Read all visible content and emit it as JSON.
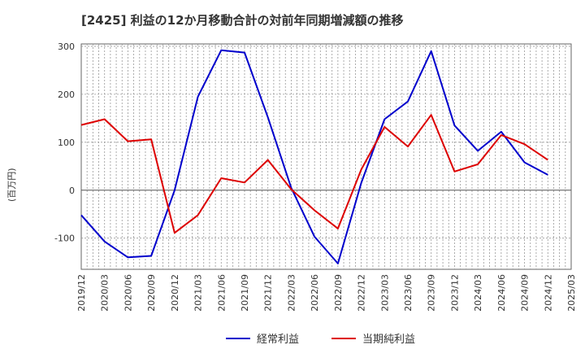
{
  "chart_data": {
    "type": "line",
    "title": "[2425]  利益の12か月移動合計の対前年同期増減額の推移",
    "ylabel": "(百万円)",
    "xlabel": "",
    "ylim": [
      -165,
      305
    ],
    "yticks": [
      300,
      200,
      100,
      0,
      -100
    ],
    "categories": [
      "2019/12",
      "2020/03",
      "2020/06",
      "2020/09",
      "2020/12",
      "2021/03",
      "2021/06",
      "2021/09",
      "2021/12",
      "2022/03",
      "2022/06",
      "2022/09",
      "2022/12",
      "2023/03",
      "2023/06",
      "2023/09",
      "2023/12",
      "2024/03",
      "2024/06",
      "2024/09",
      "2024/12",
      "2025/03"
    ],
    "series": [
      {
        "name": "経常利益",
        "color": "#0000cc",
        "values": [
          -52,
          -107,
          -140,
          -137,
          0,
          195,
          292,
          287,
          152,
          5,
          -97,
          -153,
          15,
          148,
          185,
          290,
          135,
          82,
          122,
          58,
          32,
          null
        ]
      },
      {
        "name": "当期純利益",
        "color": "#dd0000",
        "values": [
          136,
          148,
          102,
          106,
          -89,
          -52,
          25,
          16,
          63,
          2,
          -42,
          -80,
          43,
          132,
          91,
          157,
          39,
          54,
          115,
          96,
          63,
          null
        ]
      }
    ],
    "grid": true,
    "legend": "bottom"
  }
}
